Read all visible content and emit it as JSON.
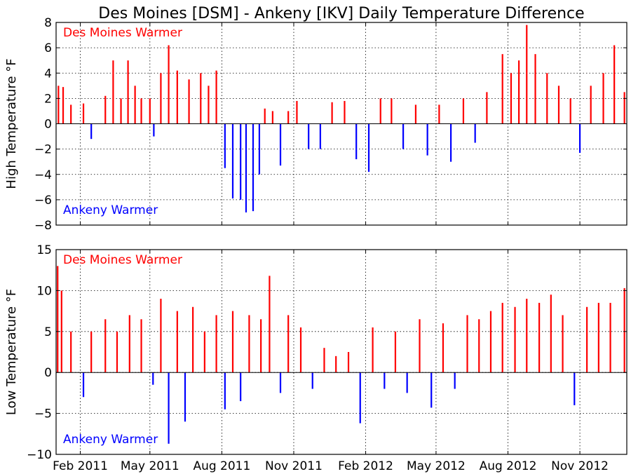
{
  "figure": {
    "title": "Des Moines [DSM] - Ankeny [IKV] Daily Temperature Difference"
  },
  "colors": {
    "positive": "#ff0000",
    "negative": "#0000ff",
    "grid": "#000000",
    "axis": "#000000"
  },
  "chart_data": [
    {
      "type": "bar",
      "title": "Des Moines [DSM] - Ankeny [IKV] Daily Temperature Difference",
      "xlabel": "",
      "ylabel": "High Temperature °F",
      "ylim": [
        -8,
        8
      ],
      "yticks": [
        -8,
        -6,
        -4,
        -2,
        0,
        2,
        4,
        6,
        8
      ],
      "xlim": [
        "2011-01-01",
        "2012-12-31"
      ],
      "xticks": [
        {
          "date": "2011-02-01",
          "label": "Feb 2011"
        },
        {
          "date": "2011-05-01",
          "label": "May 2011"
        },
        {
          "date": "2011-08-01",
          "label": "Aug 2011"
        },
        {
          "date": "2011-11-01",
          "label": "Nov 2011"
        },
        {
          "date": "2012-02-01",
          "label": "Feb 2012"
        },
        {
          "date": "2012-05-01",
          "label": "May 2012"
        },
        {
          "date": "2012-08-01",
          "label": "Aug 2012"
        },
        {
          "date": "2012-11-01",
          "label": "Nov 2012"
        }
      ],
      "grid": true,
      "annotations": [
        {
          "text": "Des Moines Warmer",
          "color": "#ff0000",
          "position": "top-left"
        },
        {
          "text": "Ankeny Warmer",
          "color": "#0000ff",
          "position": "bottom-left"
        }
      ],
      "series": [
        {
          "points": [
            {
              "date": "2011-01-04",
              "value": 3.0
            },
            {
              "date": "2011-01-10",
              "value": 2.9
            },
            {
              "date": "2011-01-20",
              "value": 1.5
            },
            {
              "date": "2011-02-05",
              "value": 1.6
            },
            {
              "date": "2011-02-15",
              "value": -1.2
            },
            {
              "date": "2011-03-05",
              "value": 2.2
            },
            {
              "date": "2011-03-15",
              "value": 5.0
            },
            {
              "date": "2011-03-25",
              "value": 2.0
            },
            {
              "date": "2011-04-03",
              "value": 5.0
            },
            {
              "date": "2011-04-12",
              "value": 3.0
            },
            {
              "date": "2011-04-20",
              "value": 2.0
            },
            {
              "date": "2011-05-01",
              "value": 2.0
            },
            {
              "date": "2011-05-06",
              "value": -1.0
            },
            {
              "date": "2011-05-15",
              "value": 4.0
            },
            {
              "date": "2011-05-25",
              "value": 6.2
            },
            {
              "date": "2011-06-05",
              "value": 4.2
            },
            {
              "date": "2011-06-20",
              "value": 3.5
            },
            {
              "date": "2011-07-05",
              "value": 4.0
            },
            {
              "date": "2011-07-15",
              "value": 3.0
            },
            {
              "date": "2011-07-25",
              "value": 4.2
            },
            {
              "date": "2011-08-05",
              "value": -3.5
            },
            {
              "date": "2011-08-15",
              "value": -5.9
            },
            {
              "date": "2011-08-25",
              "value": -6.0
            },
            {
              "date": "2011-09-01",
              "value": -7.0
            },
            {
              "date": "2011-09-10",
              "value": -6.9
            },
            {
              "date": "2011-09-18",
              "value": -4.0
            },
            {
              "date": "2011-09-25",
              "value": 1.2
            },
            {
              "date": "2011-10-05",
              "value": 1.0
            },
            {
              "date": "2011-10-15",
              "value": -3.3
            },
            {
              "date": "2011-10-25",
              "value": 1.0
            },
            {
              "date": "2011-11-05",
              "value": 1.8
            },
            {
              "date": "2011-11-20",
              "value": -2.0
            },
            {
              "date": "2011-12-05",
              "value": -2.0
            },
            {
              "date": "2011-12-20",
              "value": 1.7
            },
            {
              "date": "2012-01-05",
              "value": 1.8
            },
            {
              "date": "2012-01-20",
              "value": -2.8
            },
            {
              "date": "2012-02-05",
              "value": -3.8
            },
            {
              "date": "2012-02-20",
              "value": 2.0
            },
            {
              "date": "2012-03-05",
              "value": 2.0
            },
            {
              "date": "2012-03-20",
              "value": -2.0
            },
            {
              "date": "2012-04-05",
              "value": 1.5
            },
            {
              "date": "2012-04-20",
              "value": -2.5
            },
            {
              "date": "2012-05-05",
              "value": 1.5
            },
            {
              "date": "2012-05-20",
              "value": -3.0
            },
            {
              "date": "2012-06-05",
              "value": 2.0
            },
            {
              "date": "2012-06-20",
              "value": -1.5
            },
            {
              "date": "2012-07-05",
              "value": 2.5
            },
            {
              "date": "2012-07-25",
              "value": 5.5
            },
            {
              "date": "2012-08-05",
              "value": 4.0
            },
            {
              "date": "2012-08-15",
              "value": 5.0
            },
            {
              "date": "2012-08-25",
              "value": 7.8
            },
            {
              "date": "2012-09-05",
              "value": 5.5
            },
            {
              "date": "2012-09-20",
              "value": 4.0
            },
            {
              "date": "2012-10-05",
              "value": 3.0
            },
            {
              "date": "2012-10-20",
              "value": 2.0
            },
            {
              "date": "2012-11-01",
              "value": -2.3
            },
            {
              "date": "2012-11-15",
              "value": 3.0
            },
            {
              "date": "2012-12-01",
              "value": 4.0
            },
            {
              "date": "2012-12-15",
              "value": 6.2
            },
            {
              "date": "2012-12-28",
              "value": 2.5
            }
          ]
        }
      ]
    },
    {
      "type": "bar",
      "xlabel": "",
      "ylabel": "Low Temperature °F",
      "ylim": [
        -10,
        15
      ],
      "yticks": [
        -10,
        -5,
        0,
        5,
        10,
        15
      ],
      "xlim": [
        "2011-01-01",
        "2012-12-31"
      ],
      "xticks": [
        {
          "date": "2011-02-01",
          "label": "Feb 2011"
        },
        {
          "date": "2011-05-01",
          "label": "May 2011"
        },
        {
          "date": "2011-08-01",
          "label": "Aug 2011"
        },
        {
          "date": "2011-11-01",
          "label": "Nov 2011"
        },
        {
          "date": "2012-02-01",
          "label": "Feb 2012"
        },
        {
          "date": "2012-05-01",
          "label": "May 2012"
        },
        {
          "date": "2012-08-01",
          "label": "Aug 2012"
        },
        {
          "date": "2012-11-01",
          "label": "Nov 2012"
        }
      ],
      "grid": true,
      "annotations": [
        {
          "text": "Des Moines Warmer",
          "color": "#ff0000",
          "position": "top-left"
        },
        {
          "text": "Ankeny Warmer",
          "color": "#0000ff",
          "position": "bottom-left"
        }
      ],
      "series": [
        {
          "points": [
            {
              "date": "2011-01-03",
              "value": 13.0
            },
            {
              "date": "2011-01-08",
              "value": 10.0
            },
            {
              "date": "2011-01-20",
              "value": 5.0
            },
            {
              "date": "2011-02-05",
              "value": -3.0
            },
            {
              "date": "2011-02-15",
              "value": 5.0
            },
            {
              "date": "2011-03-05",
              "value": 6.5
            },
            {
              "date": "2011-03-20",
              "value": 5.0
            },
            {
              "date": "2011-04-05",
              "value": 7.0
            },
            {
              "date": "2011-04-20",
              "value": 6.5
            },
            {
              "date": "2011-05-05",
              "value": -1.5
            },
            {
              "date": "2011-05-15",
              "value": 9.0
            },
            {
              "date": "2011-05-25",
              "value": -8.7
            },
            {
              "date": "2011-06-05",
              "value": 7.5
            },
            {
              "date": "2011-06-15",
              "value": -6.0
            },
            {
              "date": "2011-06-25",
              "value": 8.0
            },
            {
              "date": "2011-07-10",
              "value": 5.0
            },
            {
              "date": "2011-07-25",
              "value": 7.0
            },
            {
              "date": "2011-08-05",
              "value": -4.5
            },
            {
              "date": "2011-08-15",
              "value": 7.5
            },
            {
              "date": "2011-08-25",
              "value": -3.5
            },
            {
              "date": "2011-09-05",
              "value": 7.0
            },
            {
              "date": "2011-09-20",
              "value": 6.5
            },
            {
              "date": "2011-10-01",
              "value": 11.8
            },
            {
              "date": "2011-10-15",
              "value": -2.5
            },
            {
              "date": "2011-10-25",
              "value": 7.0
            },
            {
              "date": "2011-11-10",
              "value": 5.5
            },
            {
              "date": "2011-11-25",
              "value": -2.0
            },
            {
              "date": "2011-12-10",
              "value": 3.0
            },
            {
              "date": "2011-12-25",
              "value": 2.0
            },
            {
              "date": "2012-01-10",
              "value": 2.5
            },
            {
              "date": "2012-01-25",
              "value": -6.2
            },
            {
              "date": "2012-02-10",
              "value": 5.5
            },
            {
              "date": "2012-02-25",
              "value": -2.0
            },
            {
              "date": "2012-03-10",
              "value": 5.0
            },
            {
              "date": "2012-03-25",
              "value": -2.5
            },
            {
              "date": "2012-04-10",
              "value": 6.5
            },
            {
              "date": "2012-04-25",
              "value": -4.3
            },
            {
              "date": "2012-05-10",
              "value": 6.0
            },
            {
              "date": "2012-05-25",
              "value": -2.0
            },
            {
              "date": "2012-06-10",
              "value": 7.0
            },
            {
              "date": "2012-06-25",
              "value": 6.5
            },
            {
              "date": "2012-07-10",
              "value": 7.5
            },
            {
              "date": "2012-07-25",
              "value": 8.5
            },
            {
              "date": "2012-08-10",
              "value": 8.0
            },
            {
              "date": "2012-08-25",
              "value": 9.0
            },
            {
              "date": "2012-09-10",
              "value": 8.5
            },
            {
              "date": "2012-09-25",
              "value": 9.5
            },
            {
              "date": "2012-10-10",
              "value": 7.0
            },
            {
              "date": "2012-10-25",
              "value": -4.0
            },
            {
              "date": "2012-11-10",
              "value": 8.0
            },
            {
              "date": "2012-11-25",
              "value": 8.5
            },
            {
              "date": "2012-12-10",
              "value": 8.5
            },
            {
              "date": "2012-12-28",
              "value": 10.3
            }
          ]
        }
      ]
    }
  ]
}
